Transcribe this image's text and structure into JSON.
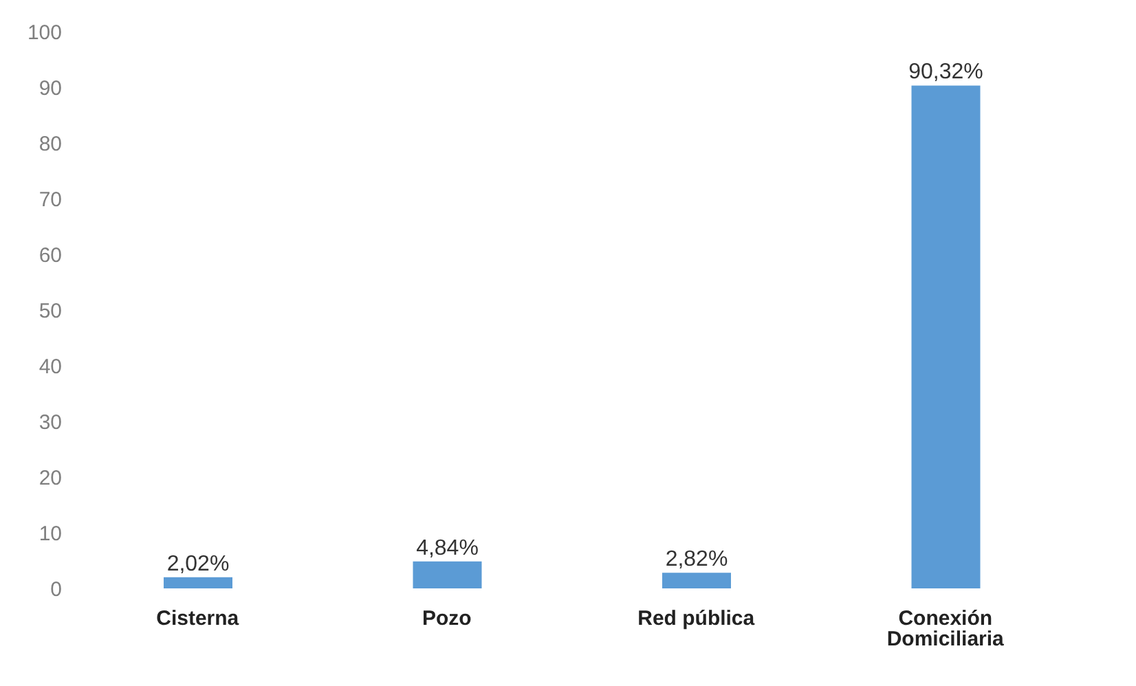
{
  "chart_data": {
    "type": "bar",
    "categories": [
      "Cisterna",
      "Pozo",
      "Red pública",
      "Conexión Domiciliaria"
    ],
    "values": [
      2.02,
      4.84,
      2.82,
      90.32
    ],
    "value_labels": [
      "2,02%",
      "4,84%",
      "2,82%",
      "90,32%"
    ],
    "color": "#5b9bd5",
    "ylim": [
      0,
      100
    ],
    "yticks": [
      0,
      10,
      20,
      30,
      40,
      50,
      60,
      70,
      80,
      90,
      100
    ],
    "grid": false,
    "legend": false
  }
}
